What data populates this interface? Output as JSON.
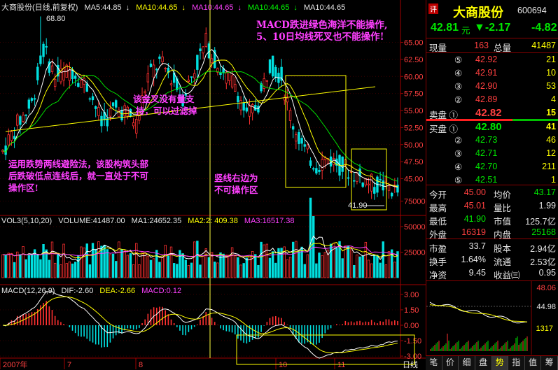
{
  "header": {
    "title": "大商股份(日线,前复权)",
    "ma5": "MA5:44.85",
    "ma10a": "MA10:44.65",
    "ma10b": "MA10:44.65",
    "ma10c": "MA10:44.65",
    "ma10d": "MA10:44.65"
  },
  "price_axis": [
    "65.00",
    "62.50",
    "60.00",
    "57.50",
    "55.00",
    "52.50",
    "50.00",
    "47.50",
    "45.00"
  ],
  "price_marks": {
    "high_label": "68.80",
    "low_label": "41.90"
  },
  "vol_header": {
    "vol": "VOL3(5,10,20)",
    "volume": "VOLUME:41487.00",
    "ma1": "MA1:24652.35",
    "ma2": "MA2:2: 409.38",
    "ma3": "MA3:16517.38"
  },
  "vol_axis": [
    "75000",
    "50000",
    "25000"
  ],
  "macd_header": {
    "macd": "MACD(12,26,9)",
    "dif": "DIF:-2.60",
    "dea": "DEA:-2.66",
    "macdv": "MACD:0.12"
  },
  "macd_axis": [
    "3.00",
    "1.50",
    "0.00",
    "-1.50",
    "-3.00"
  ],
  "date_axis": [
    "2007年",
    "7",
    "8",
    "10",
    "11"
  ],
  "date_axis_right": "日线",
  "annotations": {
    "top_right_1": "MACD跌进绿色海洋不能操作,",
    "top_right_2": "5、10日均线死叉也不能操作!",
    "middle_1": "该金叉没有量支",
    "middle_2": "持，可以过滤掉",
    "left_1": "运用跌势两线避险法，该股构筑头部",
    "left_2": "后跌破低点连线后，就一直处于不可",
    "left_3": "操作区!",
    "center_1": "竖线右边为",
    "center_2": "不可操作区"
  },
  "quote": {
    "badge": "评",
    "name": "大商股份",
    "code": "600694",
    "price": "42.81",
    "unit": "元",
    "change": "▼-2.17",
    "pct": "-4.82",
    "xianliang_label": "现量",
    "xianliang": "163",
    "zongliang_label": "总量",
    "zongliang": "41487",
    "sell": [
      {
        "label": "⑤",
        "price": "42.92",
        "vol": "21"
      },
      {
        "label": "④",
        "price": "42.91",
        "vol": "10"
      },
      {
        "label": "③",
        "price": "42.90",
        "vol": "53"
      },
      {
        "label": "②",
        "price": "42.89",
        "vol": "4"
      },
      {
        "label": "卖盘 ①",
        "price": "42.82",
        "vol": "15"
      }
    ],
    "buy": [
      {
        "label": "买盘 ①",
        "price": "42.80",
        "vol": "41"
      },
      {
        "label": "②",
        "price": "42.73",
        "vol": "46"
      },
      {
        "label": "③",
        "price": "42.71",
        "vol": "12"
      },
      {
        "label": "④",
        "price": "42.70",
        "vol": "211"
      },
      {
        "label": "⑤",
        "price": "42.51",
        "vol": "1"
      }
    ],
    "stats": [
      {
        "l1": "今开",
        "v1": "45.00",
        "l2": "均价",
        "v2": "43.17"
      },
      {
        "l1": "最高",
        "v1": "45.01",
        "l2": "量比",
        "v2": "1.99"
      },
      {
        "l1": "最低",
        "v1": "41.90",
        "l2": "市值",
        "v2": "125.7亿"
      },
      {
        "l1": "外盘",
        "v1": "16319",
        "l2": "内盘",
        "v2": "25168"
      }
    ],
    "fund": [
      {
        "l1": "市盈",
        "v1": "33.7",
        "l2": "股本",
        "v2": "2.94亿"
      },
      {
        "l1": "换手",
        "v1": "1.64%",
        "l2": "流通",
        "v2": "2.53亿"
      },
      {
        "l1": "净资",
        "v1": "9.45",
        "l2": "收益㈢",
        "v2": "0.95"
      }
    ]
  },
  "mini_chart": {
    "top": "48.06",
    "mid": "44.98",
    "vol": "1317"
  },
  "tabs": [
    "笔",
    "价",
    "细",
    "盘",
    "势",
    "指",
    "值",
    "筹"
  ]
}
